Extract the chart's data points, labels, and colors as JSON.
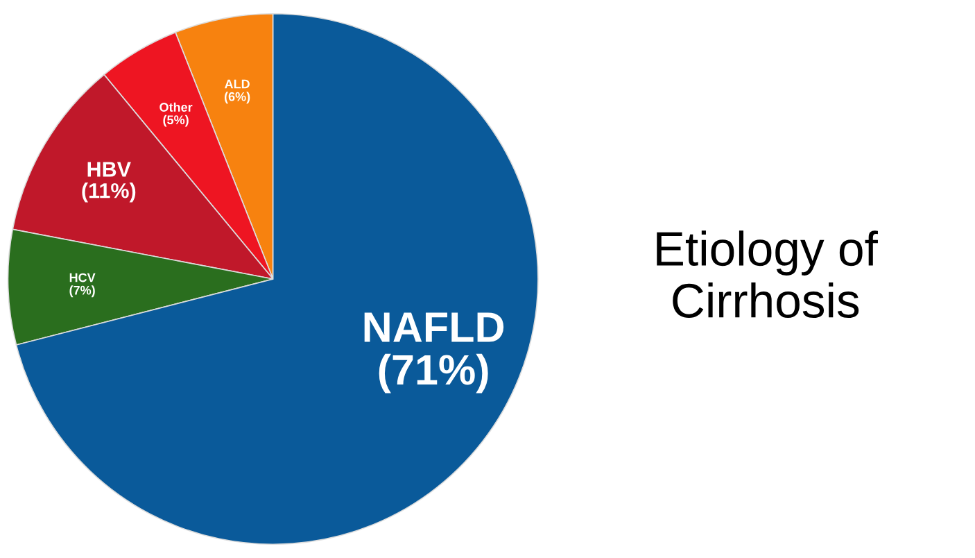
{
  "chart_data": {
    "type": "pie",
    "title": "Etiology of Cirrhosis",
    "categories": [
      "ALD",
      "Other",
      "HBV",
      "HCV",
      "NAFLD"
    ],
    "values": [
      6,
      5,
      11,
      7,
      71
    ],
    "value_labels": [
      "(6%)",
      "(5%)",
      "(11%)",
      "(7%)",
      "(71%)"
    ],
    "colors": [
      "#f7820f",
      "#ee1522",
      "#c0182a",
      "#2a6e1e",
      "#0a5a9a"
    ]
  }
}
